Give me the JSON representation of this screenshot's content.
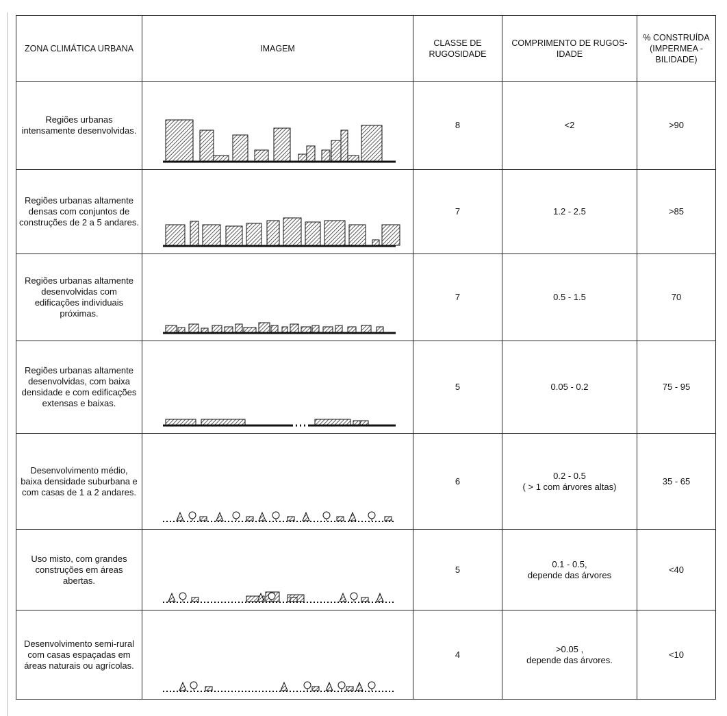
{
  "table": {
    "header": [
      "ZONA CLIMÁTICA URBANA",
      "IMAGEM",
      "CLASSE DE RUGOSIDADE",
      "COMPRIMENTO DE RUGOS-IDADE",
      "% CONSTRUÍDA (IMPERMEA - BILIDADE)"
    ],
    "rows": [
      {
        "zone": "Regiões urbanas intensamente desenvolvidas.",
        "class": "8",
        "length": [
          "<2"
        ],
        "built": ">90"
      },
      {
        "zone": "Regiões urbanas altamente densas com conjuntos de construções de 2 a 5 andares.",
        "class": "7",
        "length": [
          "1.2 - 2.5"
        ],
        "built": ">85"
      },
      {
        "zone": "Regiões urbanas altamente desenvolvidas com edificações individuais próximas.",
        "class": "7",
        "length": [
          "0.5 - 1.5"
        ],
        "built": "70"
      },
      {
        "zone": "Regiões urbanas altamente desenvolvidas, com baixa densidade e com edificações extensas e baixas.",
        "class": "5",
        "length": [
          "0.05 - 0.2"
        ],
        "built": "75 - 95"
      },
      {
        "zone": "Desenvolvimento médio, baixa densidade suburbana e com casas de 1 a 2 andares.",
        "class": "6",
        "length": [
          "0.2 - 0.5",
          "( > 1 com árvores altas)"
        ],
        "built": "35 - 65"
      },
      {
        "zone": "Uso misto, com grandes construções em áreas abertas.",
        "class": "5",
        "length": [
          "0.1 - 0.5,",
          "depende das árvores"
        ],
        "built": "<40"
      },
      {
        "zone": "Desenvolvimento semi-rural com casas espaçadas em áreas naturais ou agrícolas.",
        "class": "4",
        "length": [
          ">0.05 ,",
          "depende das árvores."
        ],
        "built": "<10"
      }
    ]
  }
}
